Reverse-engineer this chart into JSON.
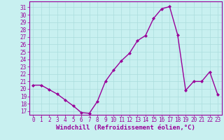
{
  "x": [
    0,
    1,
    2,
    3,
    4,
    5,
    6,
    7,
    8,
    9,
    10,
    11,
    12,
    13,
    14,
    15,
    16,
    17,
    18,
    19,
    20,
    21,
    22,
    23
  ],
  "y": [
    20.5,
    20.5,
    19.9,
    19.3,
    18.5,
    17.7,
    16.8,
    16.7,
    18.3,
    21.0,
    22.5,
    23.8,
    24.8,
    26.5,
    27.2,
    29.5,
    30.8,
    31.1,
    27.3,
    19.8,
    21.0,
    21.0,
    22.3,
    19.2
  ],
  "line_color": "#990099",
  "marker": "D",
  "marker_size": 2.0,
  "bg_color": "#c8f0f0",
  "grid_color": "#aadddd",
  "xlabel": "Windchill (Refroidissement éolien,°C)",
  "yticks": [
    17,
    18,
    19,
    20,
    21,
    22,
    23,
    24,
    25,
    26,
    27,
    28,
    29,
    30,
    31
  ],
  "xticks": [
    0,
    1,
    2,
    3,
    4,
    5,
    6,
    7,
    8,
    9,
    10,
    11,
    12,
    13,
    14,
    15,
    16,
    17,
    18,
    19,
    20,
    21,
    22,
    23
  ],
  "ylim": [
    16.5,
    31.8
  ],
  "xlim": [
    -0.5,
    23.5
  ],
  "axis_color": "#990099",
  "tick_color": "#990099",
  "xlabel_color": "#990099",
  "xlabel_fontsize": 6.5,
  "tick_fontsize": 5.5,
  "linewidth": 1.0
}
